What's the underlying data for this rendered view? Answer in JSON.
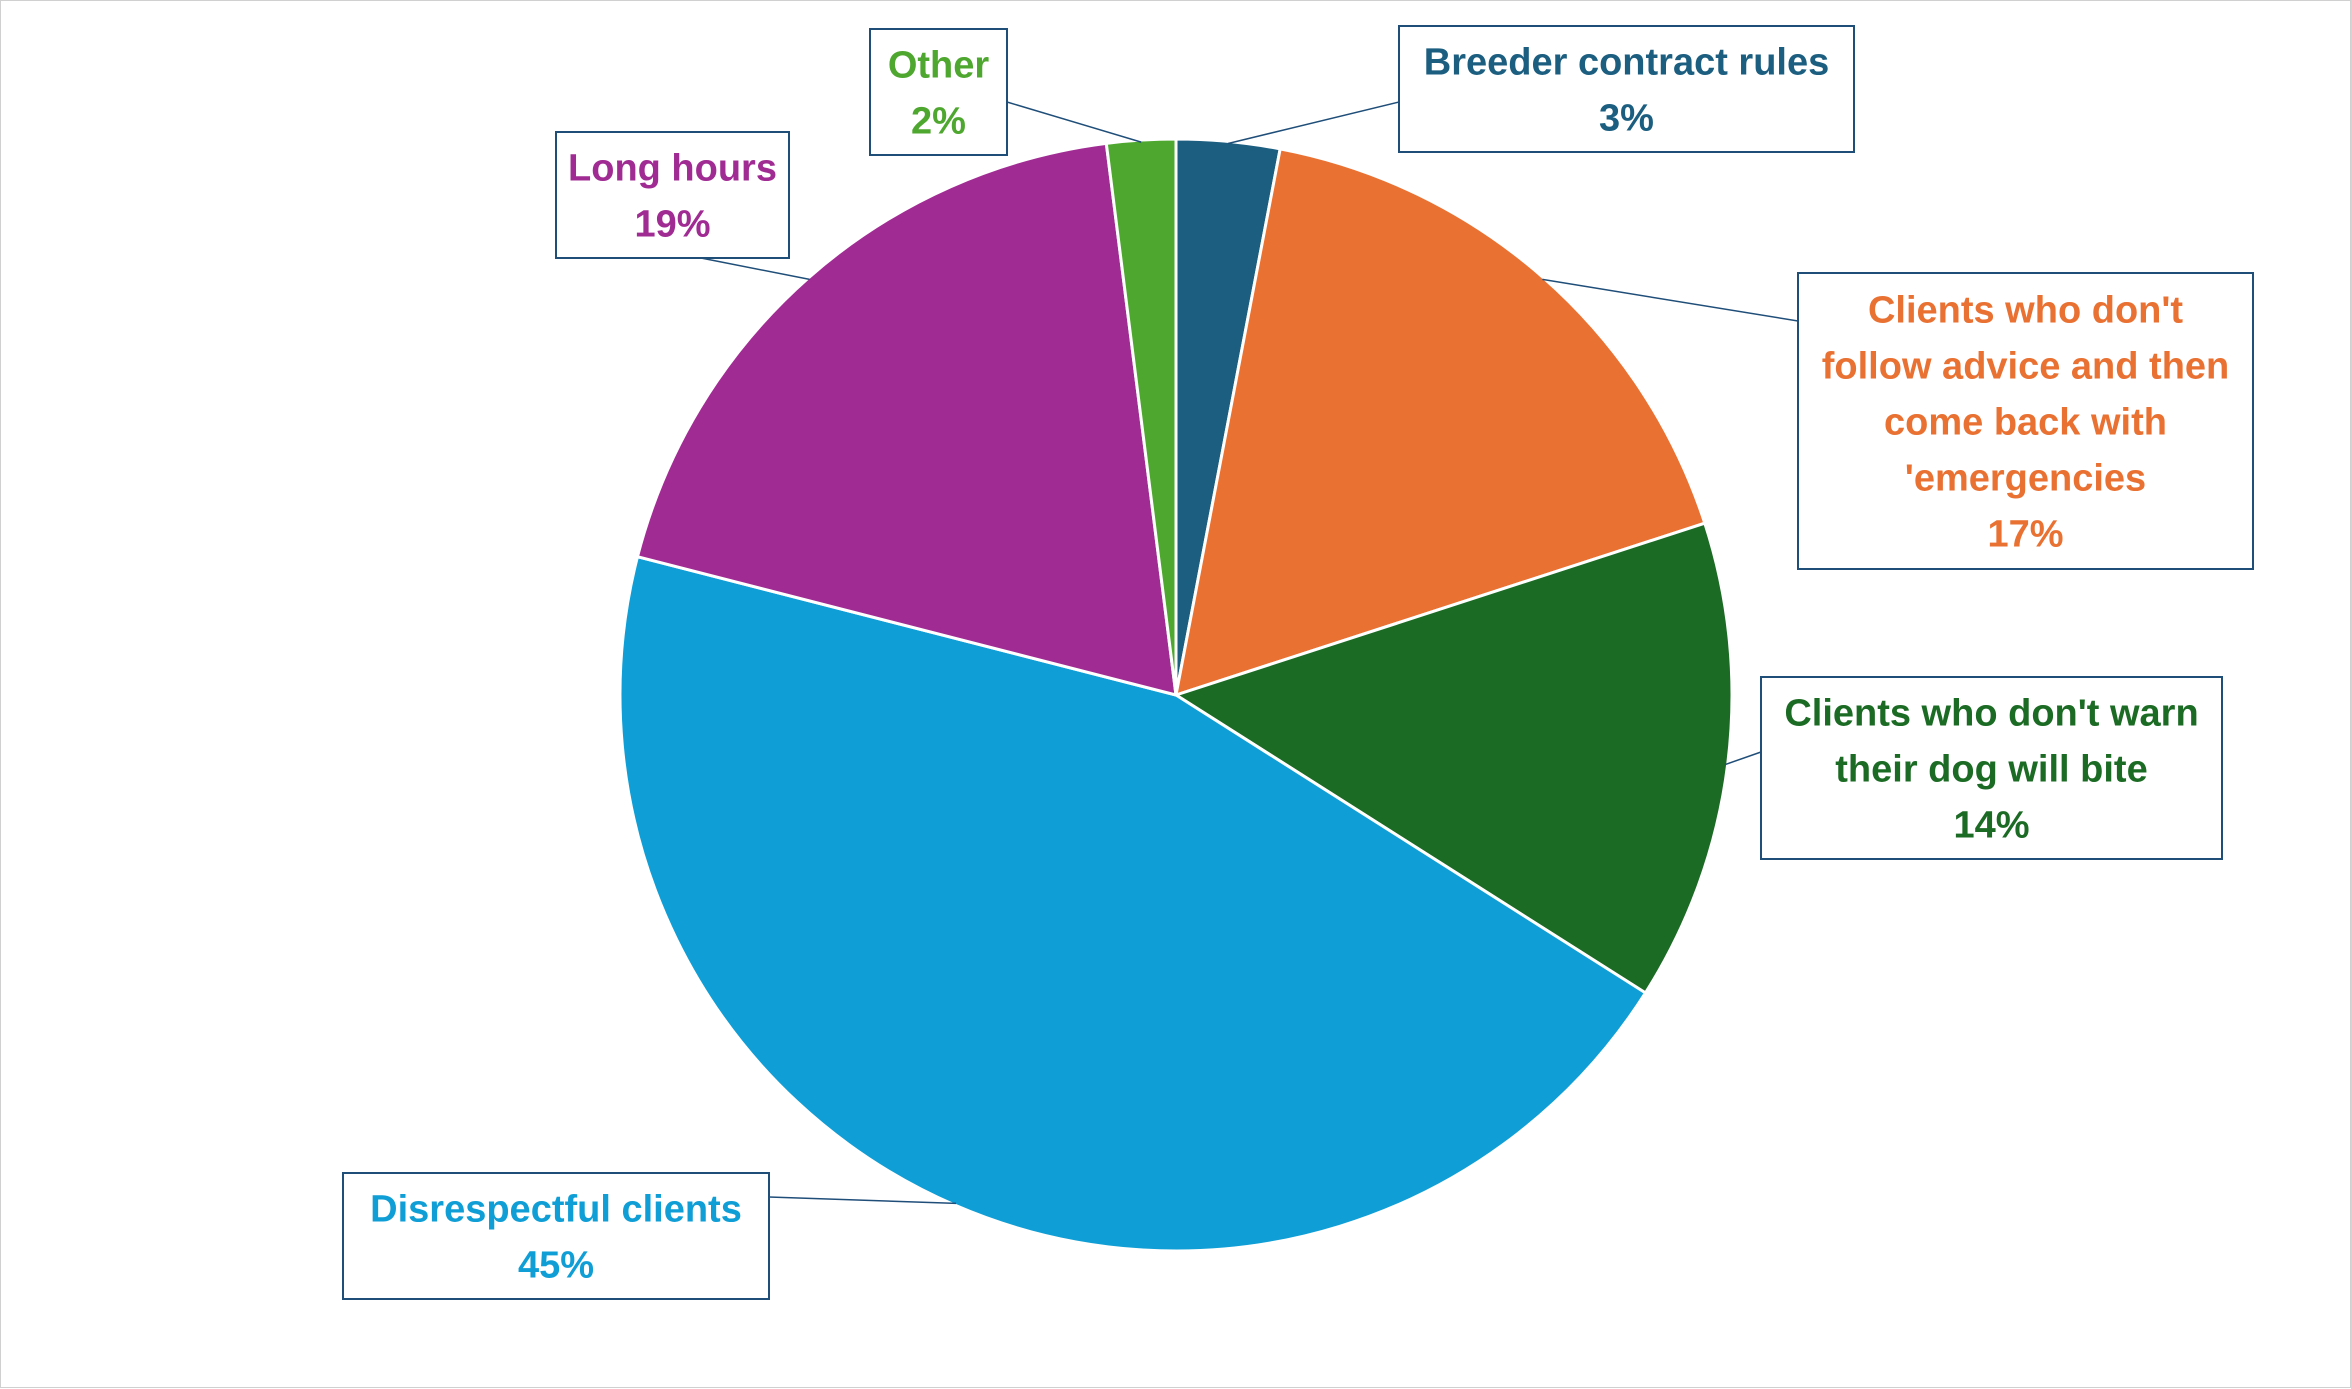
{
  "chart_data": {
    "type": "pie",
    "title": "",
    "slices": [
      {
        "label": "Breeder contract rules",
        "value": 3,
        "value_label": "3%",
        "color": "#1b5e80"
      },
      {
        "label": "Clients who don't follow advice and then come back with 'emergencies",
        "value": 17,
        "value_label": "17%",
        "color": "#e97132"
      },
      {
        "label": "Clients who don't warn their dog will bite",
        "value": 14,
        "value_label": "14%",
        "color": "#1c6b24"
      },
      {
        "label": "Disrespectful clients",
        "value": 45,
        "value_label": "45%",
        "color": "#0f9ed5"
      },
      {
        "label": "Long hours",
        "value": 19,
        "value_label": "19%",
        "color": "#a02b93"
      },
      {
        "label": "Other",
        "value": 2,
        "value_label": "2%",
        "color": "#4ea72e"
      }
    ],
    "start_angle_deg": 0,
    "direction": "clockwise",
    "legend": "none",
    "label_border_color": "#1f4e79"
  }
}
